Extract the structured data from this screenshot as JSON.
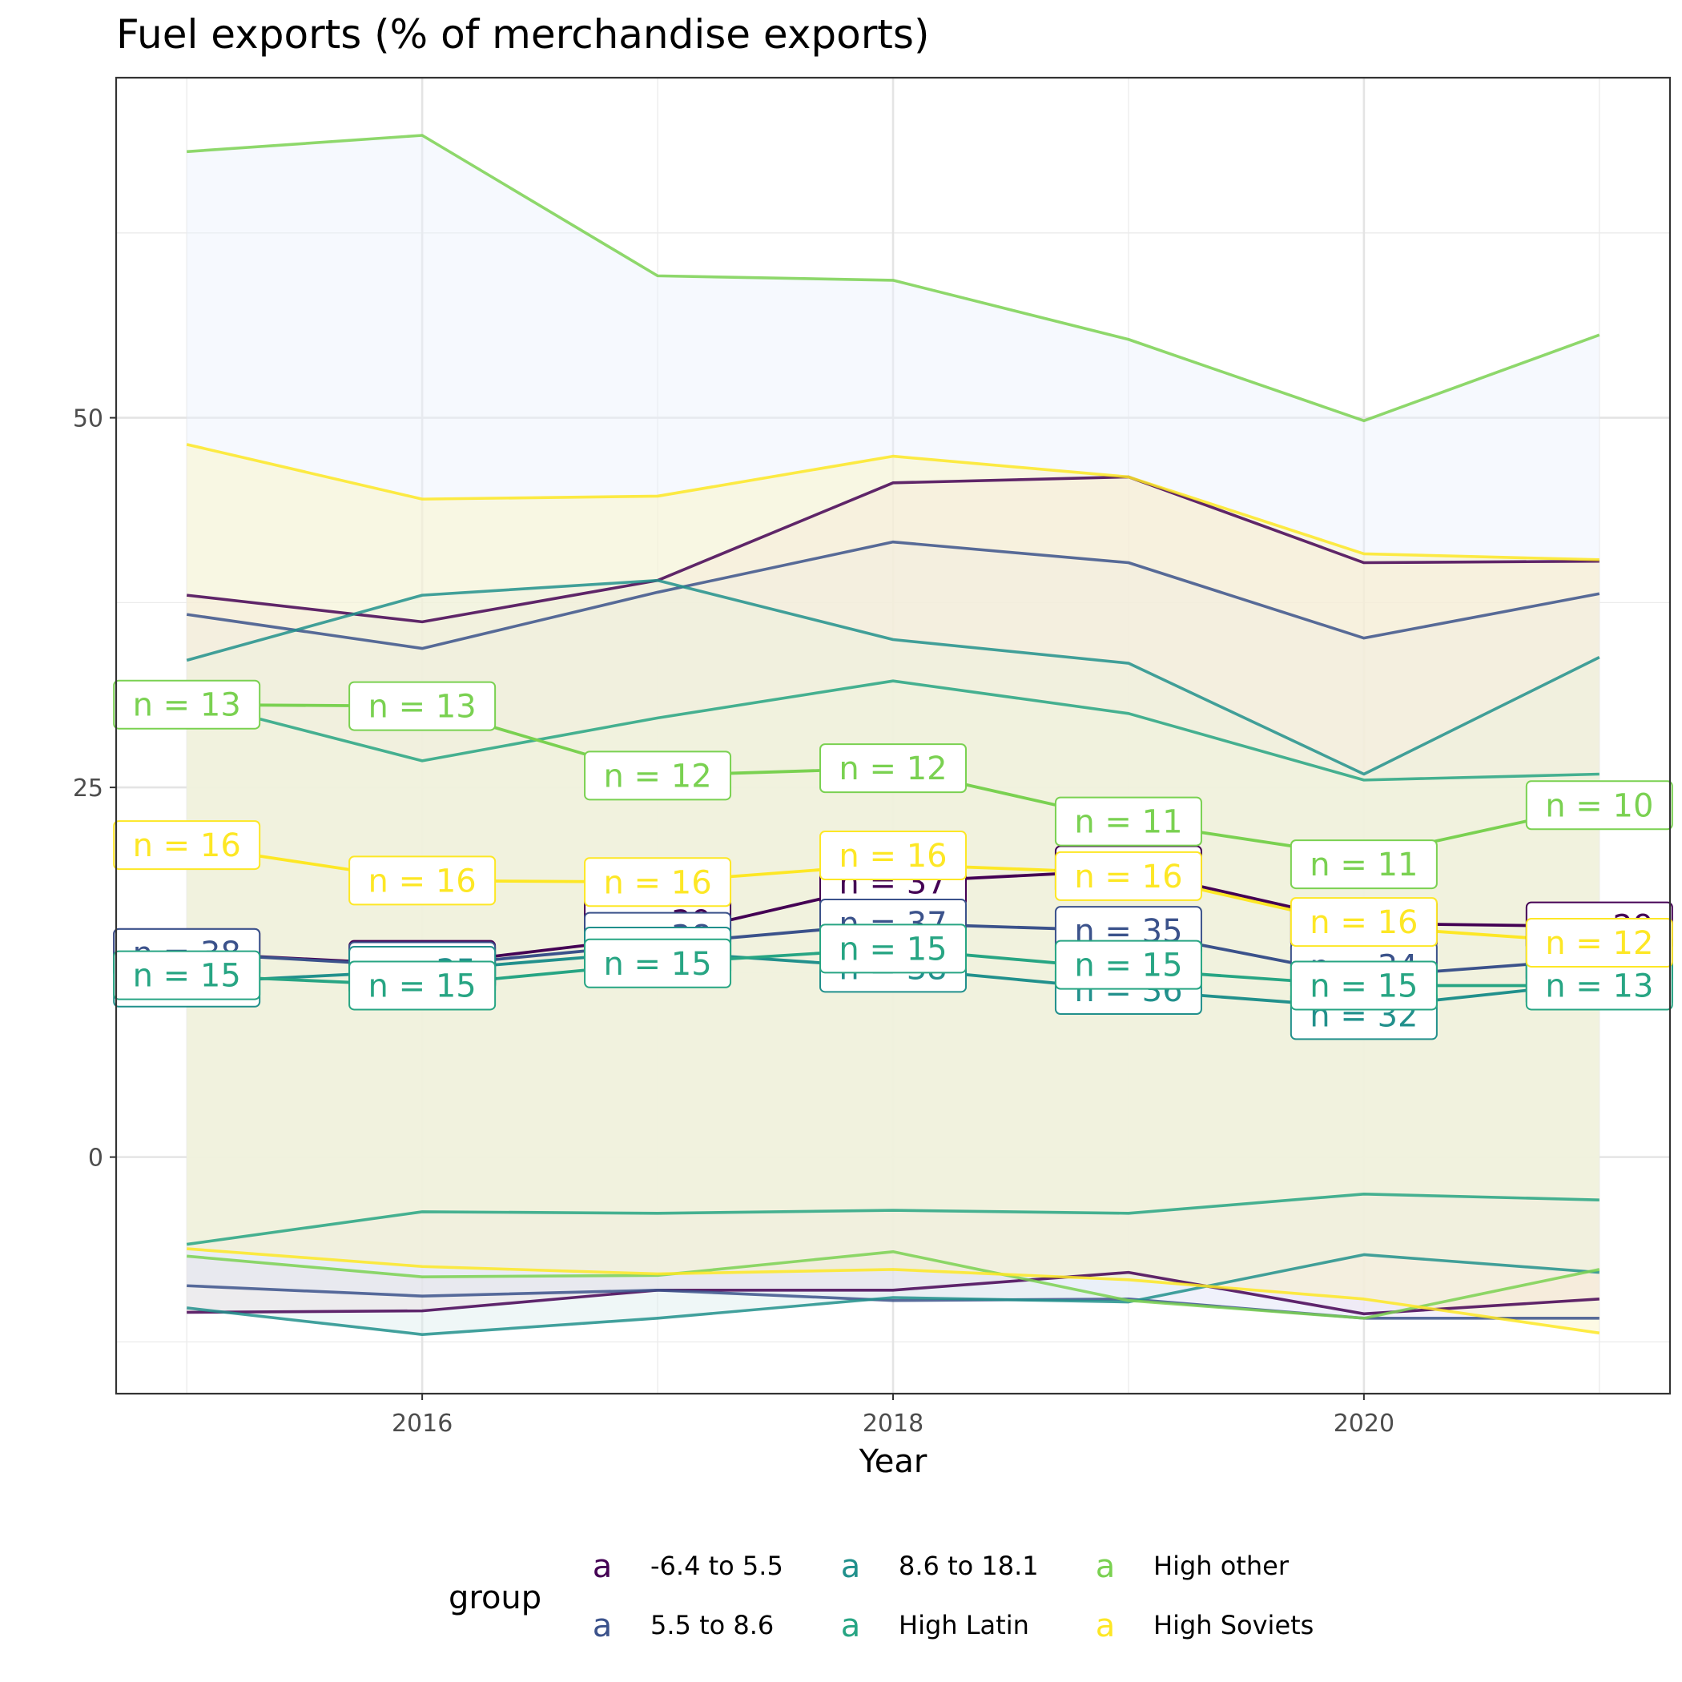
{
  "chart_data": {
    "type": "line",
    "title": "Fuel exports (% of merchandise exports)",
    "xlabel": "Year",
    "ylabel": "",
    "x": [
      2015,
      2016,
      2017,
      2018,
      2019,
      2020,
      2021
    ],
    "xlim": [
      2014.7,
      2021.3
    ],
    "ylim": [
      -16,
      73
    ],
    "x_ticks": [
      2016,
      2018,
      2020
    ],
    "y_ticks": [
      0,
      25,
      50
    ],
    "grid": true,
    "legend": {
      "title": "group",
      "position": "bottom",
      "key_glyph": "a"
    },
    "series": [
      {
        "name": "-6.4 to 5.5",
        "color": "#440154",
        "fill": "#f8d5d9",
        "mean": [
          13.8,
          13.0,
          14.9,
          18.6,
          19.4,
          15.8,
          15.6
        ],
        "upper": [
          38.0,
          36.2,
          39.0,
          45.6,
          46.0,
          40.2,
          40.3
        ],
        "lower": [
          -10.5,
          -10.4,
          -9.0,
          -9.0,
          -7.8,
          -10.6,
          -9.6
        ],
        "n": [
          38,
          35,
          39,
          37,
          33,
          30,
          29
        ],
        "label_x": [
          2015,
          2016,
          2017,
          2018,
          2019,
          2020,
          2021
        ],
        "label_y": [
          13.8,
          13.0,
          15.9,
          18.6,
          19.4,
          15.8,
          15.6
        ]
      },
      {
        "name": "5.5 to 8.6",
        "color": "#3b528b",
        "fill": "#e8dff5",
        "mean": [
          13.8,
          12.9,
          14.4,
          15.8,
          15.3,
          12.2,
          13.4
        ],
        "upper": [
          36.7,
          34.4,
          38.2,
          41.6,
          40.2,
          35.1,
          38.1
        ],
        "lower": [
          -8.7,
          -9.4,
          -9.0,
          -9.7,
          -9.6,
          -10.9,
          -10.9
        ],
        "n": [
          38,
          35,
          38,
          37,
          35,
          34,
          31
        ],
        "label_x": [
          2015,
          2016,
          2017,
          2018,
          2019,
          2020,
          2021
        ],
        "label_y": [
          13.8,
          12.9,
          14.9,
          15.8,
          15.3,
          12.9,
          13.4
        ]
      },
      {
        "name": "8.6 to 18.1",
        "color": "#21908c",
        "fill": "#dbeeee",
        "mean": [
          11.8,
          12.6,
          13.9,
          12.8,
          11.3,
          10.1,
          11.8
        ],
        "upper": [
          33.6,
          38.0,
          39.0,
          35.0,
          33.4,
          25.9,
          33.8
        ],
        "lower": [
          -10.2,
          -12.0,
          -10.9,
          -9.5,
          -9.8,
          -6.6,
          -7.8
        ],
        "n": [
          38,
          35,
          39,
          38,
          36,
          32,
          31
        ],
        "label_x": [
          2015,
          2016,
          2017,
          2018,
          2019,
          2020,
          2021
        ],
        "label_y": [
          11.8,
          12.6,
          13.9,
          12.8,
          11.3,
          9.6,
          11.8
        ]
      },
      {
        "name": "High Latin",
        "color": "#27a583",
        "fill": "#e6f6ee",
        "mean": [
          12.3,
          11.6,
          13.1,
          14.1,
          12.7,
          11.6,
          11.6
        ],
        "upper": [
          30.9,
          26.8,
          29.7,
          32.2,
          30.0,
          25.5,
          25.9
        ],
        "lower": [
          -5.9,
          -3.7,
          -3.8,
          -3.6,
          -3.8,
          -2.5,
          -2.9
        ],
        "n": [
          15,
          15,
          15,
          15,
          15,
          15,
          13
        ],
        "label_x": [
          2015,
          2016,
          2017,
          2018,
          2019,
          2020,
          2021
        ],
        "label_y": [
          12.3,
          11.6,
          13.1,
          14.1,
          13.0,
          11.6,
          11.6
        ]
      },
      {
        "name": "High other",
        "color": "#7ad151",
        "fill": "#eaf2fc",
        "mean": [
          30.6,
          30.5,
          25.8,
          26.3,
          22.7,
          20.3,
          23.8
        ],
        "upper": [
          68.0,
          69.1,
          59.6,
          59.3,
          55.3,
          49.8,
          55.6
        ],
        "lower": [
          -6.7,
          -8.1,
          -8.0,
          -6.4,
          -9.7,
          -10.9,
          -7.6
        ],
        "n": [
          13,
          13,
          12,
          12,
          11,
          11,
          10
        ],
        "label_x": [
          2015,
          2016,
          2017,
          2018,
          2019,
          2020,
          2021
        ],
        "label_y": [
          30.6,
          30.5,
          25.8,
          26.3,
          22.7,
          19.8,
          23.8
        ]
      },
      {
        "name": "High Soviets",
        "color": "#fde725",
        "fill": "#fbf3c4",
        "mean": [
          21.1,
          18.7,
          18.6,
          19.8,
          19.2,
          15.6,
          14.5
        ],
        "upper": [
          48.2,
          44.5,
          44.7,
          47.4,
          46.0,
          40.8,
          40.4
        ],
        "lower": [
          -6.2,
          -7.4,
          -7.9,
          -7.6,
          -8.3,
          -9.6,
          -11.9
        ],
        "n": [
          16,
          16,
          16,
          16,
          16,
          16,
          12
        ],
        "label_x": [
          2015,
          2016,
          2017,
          2018,
          2019,
          2020,
          2021
        ],
        "label_y": [
          21.1,
          18.7,
          18.6,
          20.4,
          19.0,
          15.9,
          14.5
        ]
      }
    ]
  }
}
